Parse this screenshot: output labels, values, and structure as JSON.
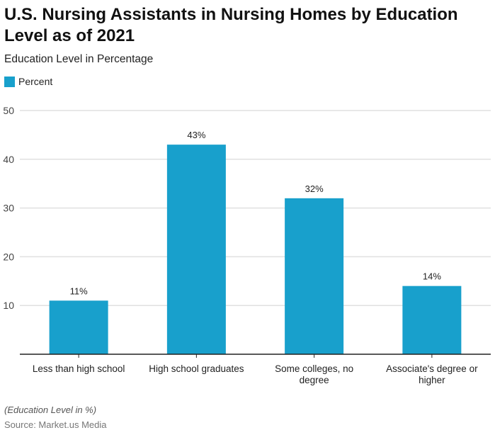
{
  "chart_data": {
    "type": "bar",
    "title": "U.S. Nursing Assistants in Nursing Homes by Education Level as of 2021",
    "subtitle": "Education Level in Percentage",
    "categories": [
      [
        "Less than high school"
      ],
      [
        "High school graduates"
      ],
      [
        "Some colleges, no",
        "degree"
      ],
      [
        "Associate's degree or",
        "higher"
      ]
    ],
    "series": [
      {
        "name": "Percent",
        "values": [
          11,
          43,
          32,
          14
        ],
        "labels": [
          "11%",
          "43%",
          "32%",
          "14%"
        ]
      }
    ],
    "ylim": [
      0,
      50
    ],
    "yticks": [
      10,
      20,
      30,
      40,
      50
    ],
    "grid": true,
    "legend": "top-left",
    "color": "#18a0cc",
    "note": "(Education Level in %)",
    "source": "Source: Market.us Media"
  }
}
